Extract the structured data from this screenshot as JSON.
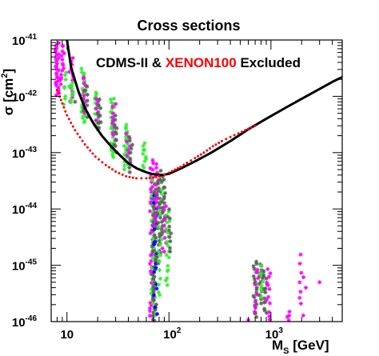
{
  "chart_data": {
    "type": "scatter",
    "title": "Cross sections",
    "xlabel": {
      "main": "M",
      "sub": "S",
      "rest": " [GeV]"
    },
    "ylabel": {
      "main": "σ [cm",
      "sup": "2",
      "rest": "]"
    },
    "x_scale": "log",
    "y_scale": "log",
    "xlim": [
      7,
      5000
    ],
    "ylim": [
      1e-46,
      1e-41
    ],
    "grid": false,
    "x_ticks": [
      {
        "value": 10,
        "base": "10",
        "exp": ""
      },
      {
        "value": 100,
        "base": "10",
        "exp": "2"
      },
      {
        "value": 1000,
        "base": "10",
        "exp": "3"
      }
    ],
    "y_ticks": [
      {
        "value": 1e-41,
        "base": "10",
        "exp": "-41"
      },
      {
        "value": 1e-42,
        "base": "10",
        "exp": "-42"
      },
      {
        "value": 1e-43,
        "base": "10",
        "exp": "-43"
      },
      {
        "value": 1e-44,
        "base": "10",
        "exp": "-44"
      },
      {
        "value": 1e-45,
        "base": "10",
        "exp": "-45"
      },
      {
        "value": 1e-46,
        "base": "10",
        "exp": "-46"
      }
    ],
    "annotation": {
      "part1": "CDMS-II & ",
      "part2": "XENON100",
      "part3": " Excluded",
      "color1": "#000000",
      "color2": "#ff0000"
    },
    "limit_curves": [
      {
        "style": "solid",
        "color": "#000000",
        "x": [
          10,
          11,
          13,
          15,
          18,
          22,
          27,
          33,
          40,
          48,
          56,
          62,
          68,
          75,
          85,
          100,
          130,
          180,
          260,
          400,
          600,
          900,
          1400,
          2000,
          3000,
          4000,
          5000
        ],
        "y": [
          1e-41,
          3.2e-42,
          1.2e-42,
          6.2e-43,
          3.4e-43,
          2e-43,
          1.3e-43,
          9e-44,
          6.5e-44,
          5.3e-44,
          4.7e-44,
          4.4e-44,
          4.2e-44,
          4.1e-44,
          4e-44,
          4.2e-44,
          5.2e-44,
          7e-44,
          1e-43,
          1.6e-43,
          2.6e-43,
          4e-43,
          6.3e-43,
          9e-43,
          1.35e-42,
          1.8e-42,
          2.2e-42
        ]
      },
      {
        "style": "dotted",
        "color": "#ff0000",
        "x": [
          8,
          9,
          10,
          12,
          15,
          19,
          24,
          30,
          38,
          48,
          60,
          70,
          80,
          90,
          100,
          115,
          130,
          150,
          180,
          220,
          270,
          330,
          400,
          480,
          560,
          640,
          700,
          760
        ],
        "y": [
          1.3e-42,
          7.5e-43,
          4.6e-43,
          2.5e-43,
          1.4e-43,
          8.5e-44,
          6e-44,
          4.6e-44,
          3.8e-44,
          3.5e-44,
          3.5e-44,
          3.6e-44,
          3.8e-44,
          4.1e-44,
          4.4e-44,
          5e-44,
          5.6e-44,
          6.6e-44,
          8e-44,
          1e-43,
          1.3e-43,
          1.6e-43,
          1.9e-43,
          2.2e-43,
          2.5e-43,
          2.8e-43,
          3e-43,
          3.2e-43
        ]
      }
    ],
    "scan_columns": [
      {
        "x": 8,
        "log_y_min": -42.0,
        "log_y_max": -41.0,
        "color": "#ff00ff",
        "density": 30
      },
      {
        "x": 9,
        "log_y_min": -41.8,
        "log_y_max": -41.05,
        "color": "#ff00ff",
        "density": 14
      },
      {
        "x": 9.4,
        "log_y_min": -42.2,
        "log_y_max": -41.5,
        "color": "#33ee33",
        "density": 8
      },
      {
        "x": 11,
        "log_y_min": -42.1,
        "log_y_max": -41.3,
        "color": "#ff00ff",
        "density": 14
      },
      {
        "x": 11.3,
        "log_y_min": -42.15,
        "log_y_max": -41.7,
        "color": "#33ee33",
        "density": 7
      },
      {
        "x": 14.5,
        "log_y_min": -42.5,
        "log_y_max": -41.5,
        "color": "#33ee33",
        "density": 24
      },
      {
        "x": 14.8,
        "log_y_min": -42.3,
        "log_y_max": -41.6,
        "color": "#ff00ff",
        "density": 10
      },
      {
        "x": 15.2,
        "log_y_min": -42.4,
        "log_y_max": -41.8,
        "color": "#556655",
        "density": 8
      },
      {
        "x": 19.5,
        "log_y_min": -42.6,
        "log_y_max": -41.9,
        "color": "#33ee33",
        "density": 20
      },
      {
        "x": 20,
        "log_y_min": -42.5,
        "log_y_max": -42.0,
        "color": "#ff00ff",
        "density": 8
      },
      {
        "x": 20.5,
        "log_y_min": -42.6,
        "log_y_max": -42.05,
        "color": "#556655",
        "density": 8
      },
      {
        "x": 28,
        "log_y_min": -43.1,
        "log_y_max": -42.0,
        "color": "#33ee33",
        "density": 26
      },
      {
        "x": 29,
        "log_y_min": -42.8,
        "log_y_max": -42.1,
        "color": "#ff00ff",
        "density": 10
      },
      {
        "x": 30,
        "log_y_min": -43.0,
        "log_y_max": -42.3,
        "color": "#556655",
        "density": 10
      },
      {
        "x": 38,
        "log_y_min": -43.3,
        "log_y_max": -42.5,
        "color": "#33ee33",
        "density": 22
      },
      {
        "x": 40,
        "log_y_min": -43.2,
        "log_y_max": -42.6,
        "color": "#ff00ff",
        "density": 8
      },
      {
        "x": 42,
        "log_y_min": -43.4,
        "log_y_max": -42.7,
        "color": "#556655",
        "density": 10
      },
      {
        "x": 58,
        "log_y_min": -43.3,
        "log_y_max": -42.8,
        "color": "#33ee33",
        "density": 10
      },
      {
        "x": 68,
        "log_y_min": -46.0,
        "log_y_max": -43.1,
        "color": "#ff00ff",
        "density": 44
      },
      {
        "x": 70,
        "log_y_min": -46.0,
        "log_y_max": -43.4,
        "color": "#33ee33",
        "density": 36
      },
      {
        "x": 72,
        "log_y_min": -46.0,
        "log_y_max": -43.6,
        "color": "#556655",
        "density": 44
      },
      {
        "x": 74,
        "log_y_min": -46.0,
        "log_y_max": -43.7,
        "color": "#0000ff",
        "density": 18
      },
      {
        "x": 76,
        "log_y_min": -44.3,
        "log_y_max": -43.2,
        "color": "#ff00ff",
        "density": 18
      },
      {
        "x": 80,
        "log_y_min": -45.0,
        "log_y_max": -43.3,
        "color": "#556655",
        "density": 28
      },
      {
        "x": 82,
        "log_y_min": -45.6,
        "log_y_max": -43.5,
        "color": "#33ee33",
        "density": 18
      },
      {
        "x": 88,
        "log_y_min": -44.5,
        "log_y_max": -43.4,
        "color": "#556655",
        "density": 20
      },
      {
        "x": 90,
        "log_y_min": -44.8,
        "log_y_max": -43.9,
        "color": "#ff00ff",
        "density": 10
      },
      {
        "x": 97,
        "log_y_min": -45.4,
        "log_y_max": -44.0,
        "color": "#33ee33",
        "density": 18
      },
      {
        "x": 102,
        "log_y_min": -44.8,
        "log_y_max": -44.0,
        "color": "#556655",
        "density": 10
      },
      {
        "x": 700,
        "log_y_min": -46.0,
        "log_y_max": -44.9,
        "color": "#556655",
        "density": 22
      },
      {
        "x": 720,
        "log_y_min": -45.9,
        "log_y_max": -45.0,
        "color": "#ff00ff",
        "density": 8
      },
      {
        "x": 800,
        "log_y_min": -45.7,
        "log_y_max": -44.95,
        "color": "#556655",
        "density": 14
      },
      {
        "x": 810,
        "log_y_min": -45.6,
        "log_y_max": -45.0,
        "color": "#33ee33",
        "density": 8
      },
      {
        "x": 880,
        "log_y_min": -45.9,
        "log_y_max": -45.05,
        "color": "#556655",
        "density": 14
      },
      {
        "x": 950,
        "log_y_min": -46.0,
        "log_y_max": -45.0,
        "color": "#ff00ff",
        "density": 12
      },
      {
        "x": 1500,
        "log_y_min": -46.0,
        "log_y_max": -45.8,
        "color": "#ff00ff",
        "density": 4
      },
      {
        "x": 2000,
        "log_y_min": -45.9,
        "log_y_max": -44.8,
        "color": "#ff00ff",
        "density": 9
      }
    ],
    "scan_points": [
      {
        "x": 10.5,
        "y": 1.5e-42,
        "color": "#33ee33"
      },
      {
        "x": 12,
        "y": 8e-43,
        "color": "#556655"
      },
      {
        "x": 600,
        "y": 1e-46,
        "color": "#ff00ff"
      },
      {
        "x": 3000,
        "y": 5e-46,
        "color": "#ff00ff"
      },
      {
        "x": 2200,
        "y": 4e-46,
        "color": "#ff00ff"
      }
    ]
  }
}
